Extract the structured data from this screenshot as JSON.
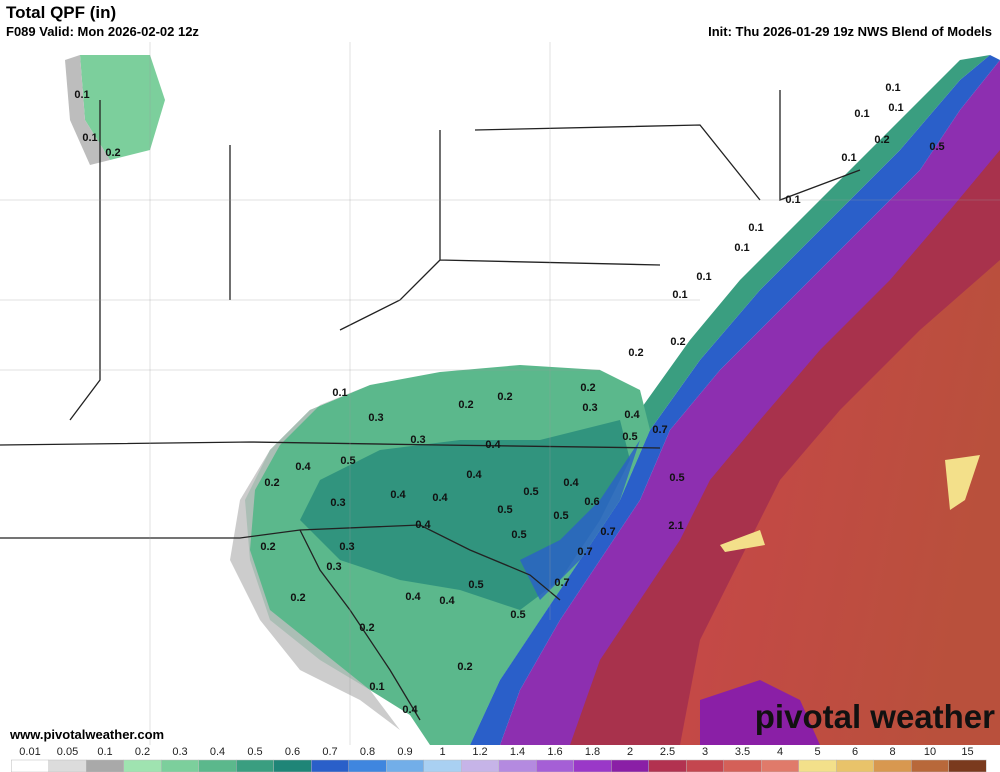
{
  "header": {
    "title": "Total QPF (in)",
    "valid": "F089 Valid: Mon 2026-02-02 12z",
    "init": "Init: Thu 2026-01-29 19z NWS Blend of Models"
  },
  "map": {
    "labels": [
      0.1,
      0.1,
      0.2,
      0.1,
      0.1,
      0.1,
      0.2,
      0.1,
      0.5,
      0.1,
      0.1,
      0.1,
      0.1,
      0.1,
      0.2,
      0.2,
      0.1,
      0.3,
      0.2,
      0.2,
      0.2,
      0.3,
      0.4,
      0.5,
      0.7,
      0.3,
      0.4,
      0.5,
      0.4,
      0.2,
      0.4,
      0.4,
      0.5,
      0.3,
      0.4,
      0.4,
      0.5,
      0.6,
      0.5,
      0.5,
      0.4,
      0.5,
      2.1,
      0.7,
      0.2,
      0.3,
      0.7,
      0.3,
      0.5,
      0.7,
      0.2,
      0.4,
      0.4,
      0.5,
      0.2,
      0.2,
      0.1,
      0.4
    ]
  },
  "footer": {
    "website": "www.pivotalweather.com",
    "logo": "pivotal weather"
  },
  "colorbar": {
    "levels": [
      0.01,
      0.05,
      0.1,
      0.2,
      0.3,
      0.4,
      0.5,
      0.6,
      0.7,
      0.8,
      0.9,
      1,
      1.2,
      1.4,
      1.6,
      1.8,
      2,
      2.5,
      3,
      3.5,
      4,
      5,
      6,
      8,
      10,
      15
    ],
    "colors": [
      "#ffffff",
      "#dcdcdc",
      "#a9a9a9",
      "#9fe3b0",
      "#7ccf9c",
      "#5bb88c",
      "#3a9e80",
      "#1f8577",
      "#2a5fc9",
      "#3f86df",
      "#72aee9",
      "#a9d0f2",
      "#c6b4e8",
      "#b48ae0",
      "#a55fd6",
      "#9a38c8",
      "#8a1fa6",
      "#b23250",
      "#c4464f",
      "#d46058",
      "#e07a6a",
      "#f3e08a",
      "#e9c36a",
      "#d89850",
      "#b8683a",
      "#7a3a1e"
    ]
  }
}
